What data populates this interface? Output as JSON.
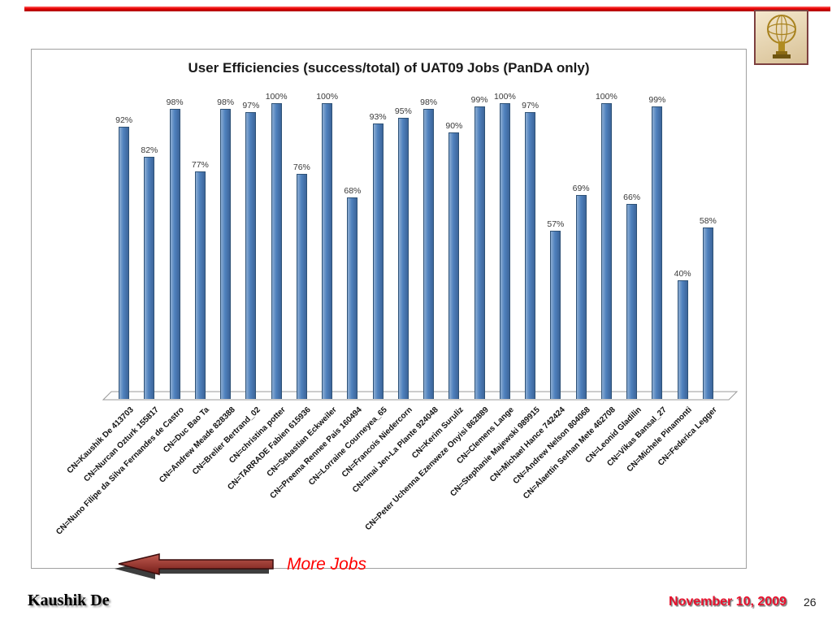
{
  "chart_data": {
    "type": "bar",
    "title": "User Efficiencies (success/total) of UAT09 Jobs (PanDA only)",
    "xlabel": "",
    "ylabel": "",
    "ylim": [
      0,
      100
    ],
    "grid": false,
    "legend_position": "none",
    "bar_color": "#4f81bd",
    "categories": [
      "CN=Kaushik De 413703",
      "CN=Nurcan Ozturk 155817",
      "CN=Nuno Filipe da Silva Fernandes de Castro",
      "CN=Duc Bao Ta",
      "CN=Andrew Meade 828388",
      "CN=Brelier Bertrand_02",
      "CN=christina potter",
      "CN=TARRADE Fabien 615936",
      "CN=Sebastian Eckweiler",
      "CN=Preema Rennee Pais 160494",
      "CN=Lorraine Courneyea_65",
      "CN=Francois Niedercorn",
      "CN=Imai Jen-La Plante 924048",
      "CN=Kerim Suruliz",
      "CN=Peter Uchenna Ezenweze Onyisi 862889",
      "CN=Clemens Lange",
      "CN=Stephanie Majewski 989915",
      "CN=Michael Hance 742424",
      "CN=Andrew Nelson 804068",
      "CN=Alaettin Serhan Mete 462708",
      "CN=Leonid Gladilin",
      "CN=Vikas Bansal_27",
      "CN=Michele Pinamonti",
      "CN=Federica Legger"
    ],
    "values": [
      92,
      82,
      98,
      77,
      98,
      97,
      100,
      76,
      100,
      68,
      93,
      95,
      98,
      90,
      99,
      100,
      97,
      57,
      69,
      100,
      66,
      99,
      40,
      58
    ],
    "value_labels": [
      "92%",
      "82%",
      "98%",
      "77%",
      "98%",
      "97%",
      "100%",
      "76%",
      "100%",
      "68%",
      "93%",
      "95%",
      "98%",
      "90%",
      "99%",
      "100%",
      "97%",
      "57%",
      "69%",
      "100%",
      "66%",
      "99%",
      "40%",
      "58%"
    ]
  },
  "annotations": {
    "more_jobs": "More Jobs"
  },
  "footer": {
    "author": "Kaushik De",
    "date": "November 10, 2009",
    "page": "26"
  },
  "icons": {
    "logo": "atlas-statue-globe-icon"
  },
  "colors": {
    "accent_red": "#e60000",
    "bar_blue": "#4f81bd",
    "annotation_red": "#ff0000",
    "arrow_dark_red": "#8b2420"
  }
}
